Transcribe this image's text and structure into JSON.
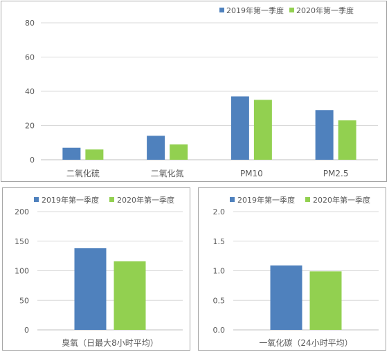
{
  "colors": {
    "s2019": "#4f81bd",
    "s2020": "#92d050",
    "grid": "#d9d9d9",
    "axis": "#bfbfbf",
    "text": "#595959"
  },
  "chart_data": [
    {
      "type": "bar",
      "categories": [
        "二氧化硫",
        "二氧化氮",
        "PM10",
        "PM2.5"
      ],
      "series": [
        {
          "name": "2019年第一季度",
          "values": [
            7,
            14,
            37,
            29
          ]
        },
        {
          "name": "2020年第一季度",
          "values": [
            6,
            9,
            35,
            23
          ]
        }
      ],
      "ylim": [
        0,
        80
      ],
      "yticks": [
        "0",
        "20",
        "40",
        "60",
        "80"
      ],
      "title": "",
      "xlabel": "",
      "ylabel": "",
      "legend": "top-right",
      "grid": true
    },
    {
      "type": "bar",
      "categories": [
        "臭氧（日最大8小时平均）"
      ],
      "series": [
        {
          "name": "2019年第一季度",
          "values": [
            138
          ]
        },
        {
          "name": "2020年第一季度",
          "values": [
            116
          ]
        }
      ],
      "ylim": [
        0,
        200
      ],
      "yticks": [
        "0",
        "50",
        "100",
        "150",
        "200"
      ],
      "title": "",
      "xlabel": "",
      "ylabel": "",
      "legend": "top",
      "grid": true
    },
    {
      "type": "bar",
      "categories": [
        "一氧化碳（24小时平均）"
      ],
      "series": [
        {
          "name": "2019年第一季度",
          "values": [
            1.09
          ]
        },
        {
          "name": "2020年第一季度",
          "values": [
            0.99
          ]
        }
      ],
      "ylim": [
        0,
        2.0
      ],
      "yticks": [
        "0.0",
        "0.5",
        "1.0",
        "1.5",
        "2.0"
      ],
      "title": "",
      "xlabel": "",
      "ylabel": "",
      "legend": "top",
      "grid": true
    }
  ]
}
